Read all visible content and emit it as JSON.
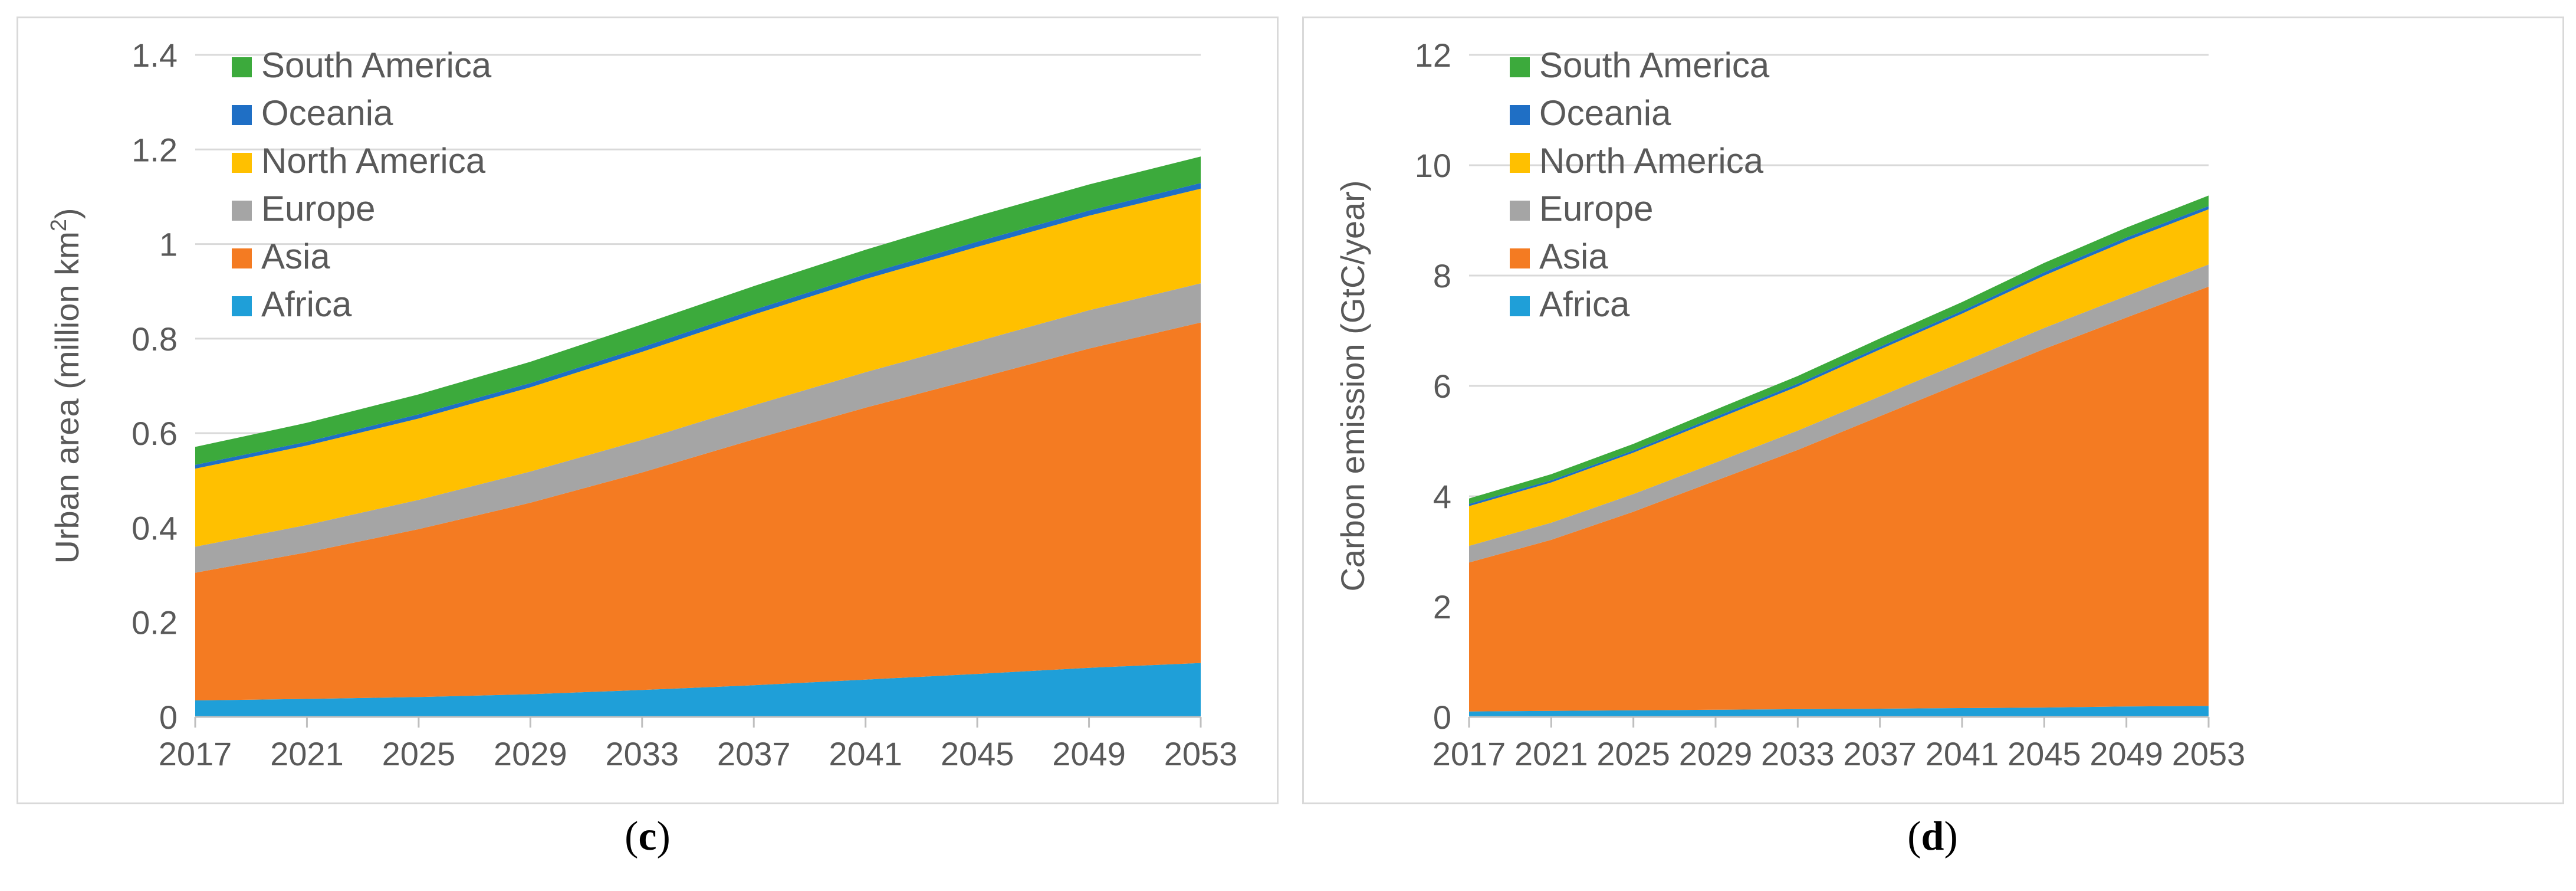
{
  "chart_data": [
    {
      "id": "c",
      "type": "area",
      "stacked": true,
      "caption_letter": "c",
      "ylabel": "Urban area (million km",
      "ylabel_sup": "2",
      "ylabel_close": ")",
      "xlabel": "",
      "x": [
        2017,
        2021,
        2025,
        2029,
        2033,
        2037,
        2041,
        2045,
        2049,
        2053
      ],
      "x_tick_labels": [
        "2017",
        "2021",
        "2025",
        "2029",
        "2033",
        "2037",
        "2041",
        "2045",
        "2049",
        "2053"
      ],
      "ylim": [
        0,
        1.4
      ],
      "y_ticks": [
        0,
        0.2,
        0.4,
        0.6,
        0.8,
        1.0,
        1.2,
        1.4
      ],
      "y_tick_labels": [
        "0",
        "0.2",
        "0.4",
        "0.6",
        "0.8",
        "1",
        "1.2",
        "1.4"
      ],
      "grid": true,
      "legend_position": "top-left",
      "series": [
        {
          "name": "Africa",
          "color": "#1f9fd8",
          "values": [
            0.035,
            0.038,
            0.042,
            0.048,
            0.057,
            0.067,
            0.079,
            0.091,
            0.104,
            0.114
          ]
        },
        {
          "name": "Asia",
          "color": "#f47b22",
          "values": [
            0.27,
            0.31,
            0.355,
            0.405,
            0.46,
            0.52,
            0.575,
            0.625,
            0.675,
            0.72
          ]
        },
        {
          "name": "Europe",
          "color": "#a5a5a5",
          "values": [
            0.055,
            0.058,
            0.062,
            0.066,
            0.069,
            0.072,
            0.075,
            0.078,
            0.081,
            0.083
          ]
        },
        {
          "name": "North America",
          "color": "#ffc000",
          "values": [
            0.165,
            0.168,
            0.172,
            0.178,
            0.186,
            0.192,
            0.197,
            0.2,
            0.2,
            0.2
          ]
        },
        {
          "name": "Oceania",
          "color": "#1f6fc5",
          "values": [
            0.008,
            0.008,
            0.009,
            0.009,
            0.01,
            0.01,
            0.01,
            0.011,
            0.011,
            0.012
          ]
        },
        {
          "name": "South America",
          "color": "#3caa3c",
          "values": [
            0.038,
            0.04,
            0.042,
            0.045,
            0.048,
            0.05,
            0.052,
            0.054,
            0.055,
            0.056
          ]
        }
      ]
    },
    {
      "id": "d",
      "type": "area",
      "stacked": true,
      "caption_letter": "d",
      "ylabel": "Carbon emission (GtC/year)",
      "ylabel_sup": "",
      "ylabel_close": "",
      "xlabel": "",
      "x": [
        2017,
        2021,
        2025,
        2029,
        2033,
        2037,
        2041,
        2045,
        2049,
        2053
      ],
      "x_tick_labels": [
        "2017",
        "2021",
        "2025",
        "2029",
        "2033",
        "2037",
        "2041",
        "2045",
        "2049",
        "2053"
      ],
      "ylim": [
        0,
        12
      ],
      "y_ticks": [
        0,
        2,
        4,
        6,
        8,
        10,
        12
      ],
      "y_tick_labels": [
        "0",
        "2",
        "4",
        "6",
        "8",
        "10",
        "12"
      ],
      "grid": true,
      "legend_position": "top-left",
      "series": [
        {
          "name": "Africa",
          "color": "#1f9fd8",
          "values": [
            0.1,
            0.11,
            0.12,
            0.13,
            0.14,
            0.15,
            0.16,
            0.17,
            0.19,
            0.2
          ]
        },
        {
          "name": "Asia",
          "color": "#f47b22",
          "values": [
            2.7,
            3.1,
            3.6,
            4.15,
            4.7,
            5.3,
            5.9,
            6.5,
            7.05,
            7.6
          ]
        },
        {
          "name": "Europe",
          "color": "#a5a5a5",
          "values": [
            0.3,
            0.31,
            0.32,
            0.33,
            0.35,
            0.36,
            0.37,
            0.38,
            0.39,
            0.4
          ]
        },
        {
          "name": "North America",
          "color": "#ffc000",
          "values": [
            0.72,
            0.73,
            0.75,
            0.78,
            0.8,
            0.85,
            0.88,
            0.95,
            1.0,
            1.0
          ]
        },
        {
          "name": "Oceania",
          "color": "#1f6fc5",
          "values": [
            0.04,
            0.04,
            0.04,
            0.05,
            0.05,
            0.05,
            0.05,
            0.06,
            0.06,
            0.06
          ]
        },
        {
          "name": "South America",
          "color": "#3caa3c",
          "values": [
            0.1,
            0.11,
            0.12,
            0.13,
            0.14,
            0.15,
            0.16,
            0.17,
            0.18,
            0.19
          ]
        }
      ]
    }
  ]
}
